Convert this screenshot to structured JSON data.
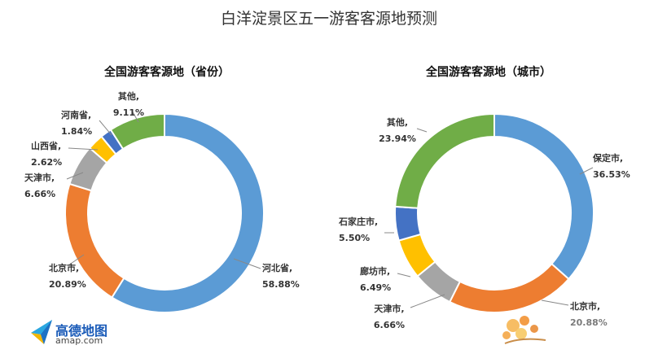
{
  "title": "白洋淀景区五一游客客源地预测",
  "logo": {
    "name": "高德地图",
    "url": "amap.com",
    "icon": "amap-logo-icon"
  },
  "watermark": {
    "icon": "flower-watermark-icon"
  },
  "colors": {
    "blue": "#5b9bd5",
    "orange": "#ed7d31",
    "gray": "#a5a5a5",
    "yellow": "#ffc000",
    "navy": "#4472c4",
    "green": "#70ad47"
  },
  "chart_data": [
    {
      "type": "pie",
      "donut": true,
      "title": "全国游客客源地（省份）",
      "slices": [
        {
          "label": "河北省,",
          "value": 58.88,
          "value_label": "58.88%",
          "color": "#5b9bd5"
        },
        {
          "label": "北京市,",
          "value": 20.89,
          "value_label": "20.89%",
          "color": "#ed7d31"
        },
        {
          "label": "天津市,",
          "value": 6.66,
          "value_label": "6.66%",
          "color": "#a5a5a5"
        },
        {
          "label": "山西省,",
          "value": 2.62,
          "value_label": "2.62%",
          "color": "#ffc000"
        },
        {
          "label": "河南省,",
          "value": 1.84,
          "value_label": "1.84%",
          "color": "#4472c4"
        },
        {
          "label": "其他,",
          "value": 9.11,
          "value_label": "9.11%",
          "color": "#70ad47"
        }
      ]
    },
    {
      "type": "pie",
      "donut": true,
      "title": "全国游客客源地（城市）",
      "slices": [
        {
          "label": "保定市,",
          "value": 36.53,
          "value_label": "36.53%",
          "color": "#5b9bd5"
        },
        {
          "label": "北京市,",
          "value": 20.88,
          "value_label": "20.88%",
          "color": "#ed7d31"
        },
        {
          "label": "天津市,",
          "value": 6.66,
          "value_label": "6.66%",
          "color": "#a5a5a5"
        },
        {
          "label": "廊坊市,",
          "value": 6.49,
          "value_label": "6.49%",
          "color": "#ffc000"
        },
        {
          "label": "石家庄市,",
          "value": 5.5,
          "value_label": "5.50%",
          "color": "#4472c4"
        },
        {
          "label": "其他,",
          "value": 23.94,
          "value_label": "23.94%",
          "color": "#70ad47"
        }
      ]
    }
  ]
}
